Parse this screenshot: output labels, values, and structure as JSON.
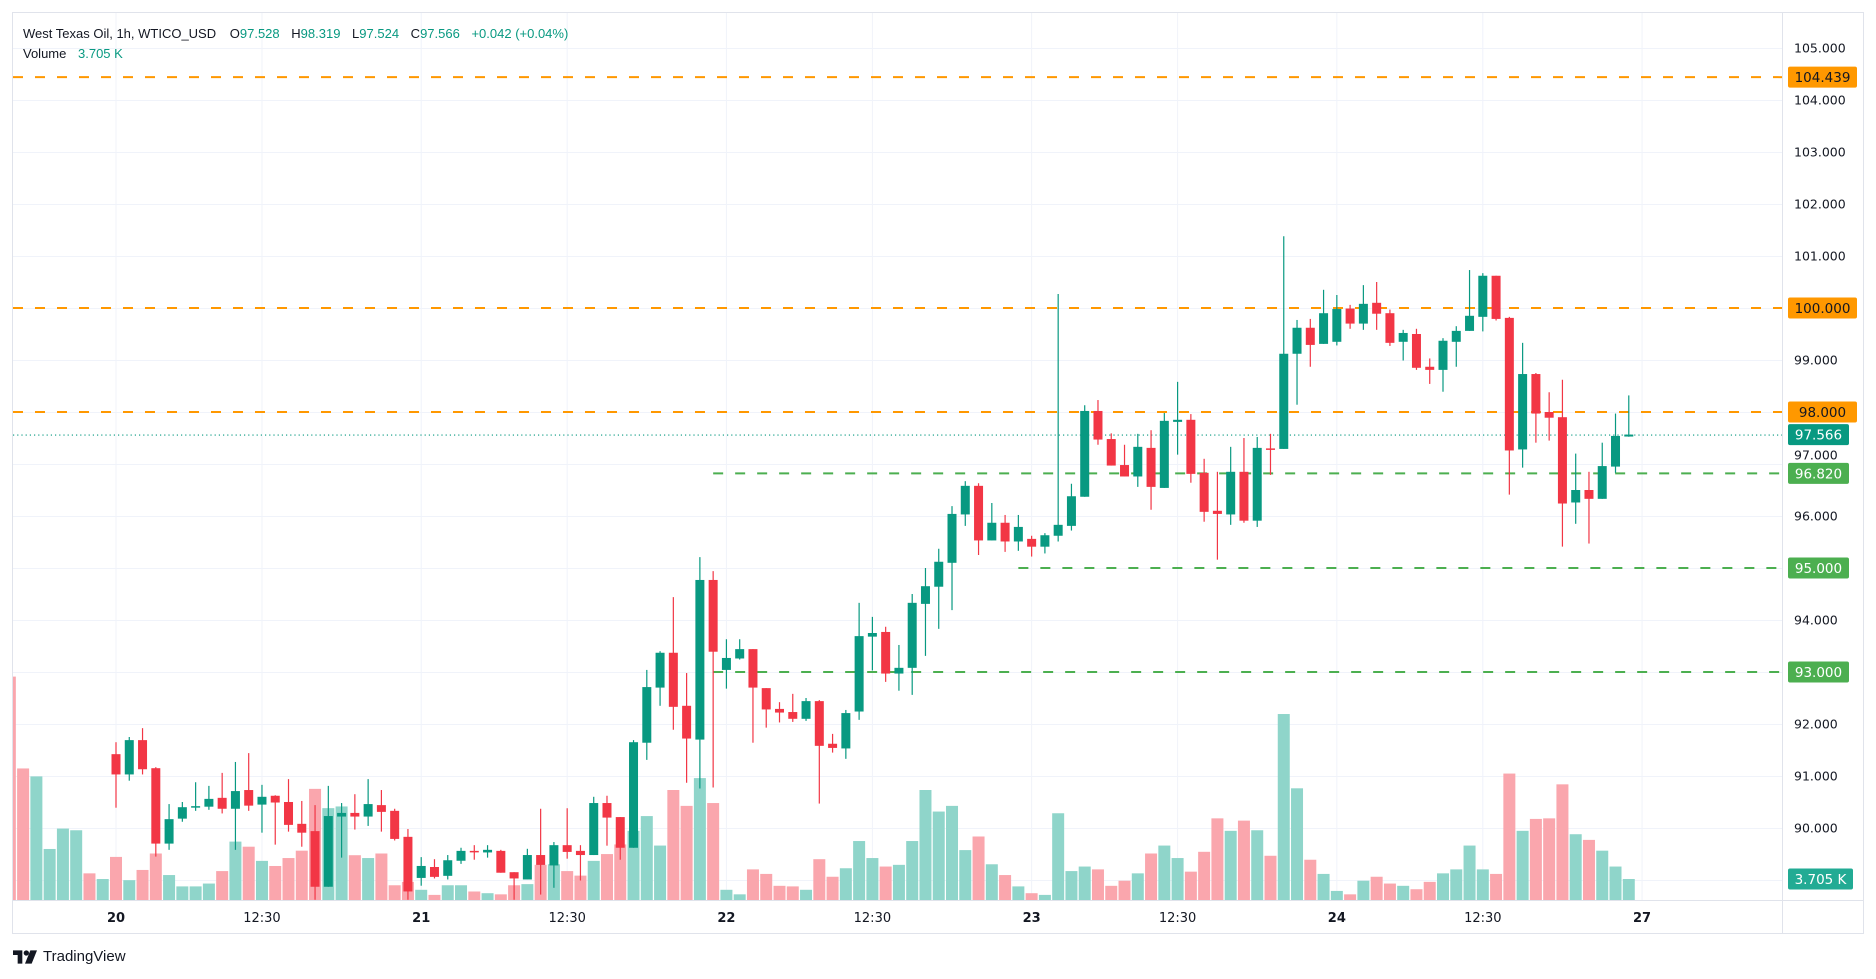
{
  "legend": {
    "symbol": "West Texas Oil, 1h, WTICO_USD",
    "open_label": "O",
    "open": "97.528",
    "high_label": "H",
    "high": "98.319",
    "low_label": "L",
    "low": "97.524",
    "close_label": "C",
    "close": "97.566",
    "change": "+0.042 (+0.04%)",
    "volume_label": "Volume",
    "volume_value": "3.705 K"
  },
  "branding": {
    "name": "TradingView"
  },
  "colors": {
    "up": "#089981",
    "down": "#f23645",
    "vol_up": "#8fd5ca",
    "vol_down": "#faa6ad",
    "orange": "#ff9800",
    "green_level": "#4caf50",
    "grid": "#f0f3fa"
  },
  "chart_data": {
    "type": "candlestick",
    "title": "West Texas Oil, 1h, WTICO_USD",
    "ylim": [
      88.4,
      105.7
    ],
    "y_ticks": [
      "90.000",
      "91.000",
      "92.000",
      "93.000",
      "94.000",
      "95.000",
      "96.000",
      "97.000",
      "98.000",
      "99.000",
      "100.000",
      "101.000",
      "102.000",
      "103.000",
      "104.000",
      "105.000"
    ],
    "x_ticks": [
      {
        "label": "20",
        "bold": true,
        "bar": 0
      },
      {
        "label": "12:30",
        "bold": false,
        "bar": 11
      },
      {
        "label": "21",
        "bold": true,
        "bar": 23
      },
      {
        "label": "12:30",
        "bold": false,
        "bar": 34
      },
      {
        "label": "22",
        "bold": true,
        "bar": 46
      },
      {
        "label": "12:30",
        "bold": false,
        "bar": 57
      },
      {
        "label": "23",
        "bold": true,
        "bar": 69
      },
      {
        "label": "12:30",
        "bold": false,
        "bar": 80
      },
      {
        "label": "24",
        "bold": true,
        "bar": 92
      },
      {
        "label": "12:30",
        "bold": false,
        "bar": 103
      },
      {
        "label": "27",
        "bold": true,
        "bar": 115
      }
    ],
    "bar_fields": [
      "open",
      "high",
      "low",
      "close",
      "volume_k"
    ],
    "first_bar_index": -8,
    "bars": [
      [
        null,
        null,
        null,
        null,
        39.4
      ],
      [
        null,
        null,
        null,
        null,
        23.2
      ],
      [
        null,
        null,
        null,
        null,
        21.8
      ],
      [
        null,
        null,
        null,
        null,
        9.0
      ],
      [
        null,
        null,
        null,
        null,
        12.6
      ],
      [
        null,
        null,
        null,
        null,
        12.3
      ],
      [
        null,
        null,
        null,
        null,
        4.7
      ],
      [
        null,
        null,
        null,
        null,
        3.7
      ],
      [
        91.42,
        91.65,
        90.39,
        91.03,
        7.6
      ],
      [
        91.03,
        91.75,
        90.91,
        91.69,
        3.5
      ],
      [
        91.69,
        91.92,
        91.03,
        91.13,
        5.3
      ],
      [
        91.15,
        91.17,
        89.45,
        89.7,
        8.2
      ],
      [
        89.7,
        90.46,
        89.58,
        90.17,
        4.4
      ],
      [
        90.18,
        90.5,
        90.12,
        90.4,
        2.4
      ],
      [
        90.42,
        90.88,
        90.33,
        90.42,
        2.4
      ],
      [
        90.41,
        90.81,
        90.35,
        90.56,
        2.9
      ],
      [
        90.58,
        91.06,
        90.28,
        90.37,
        5.1
      ],
      [
        90.37,
        91.27,
        89.58,
        90.71,
        10.3
      ],
      [
        90.73,
        91.44,
        90.33,
        90.43,
        9.4
      ],
      [
        90.45,
        90.83,
        89.91,
        90.6,
        6.9
      ],
      [
        90.62,
        90.63,
        89.68,
        90.49,
        6.0
      ],
      [
        90.5,
        90.94,
        89.93,
        90.06,
        7.4
      ],
      [
        90.08,
        90.52,
        89.64,
        89.91,
        8.7
      ],
      [
        89.94,
        90.44,
        88.62,
        88.87,
        19.6
      ],
      [
        88.87,
        90.81,
        88.87,
        90.23,
        16.2
      ],
      [
        90.22,
        90.48,
        89.43,
        90.29,
        16.5
      ],
      [
        90.29,
        90.65,
        89.97,
        90.22,
        7.9
      ],
      [
        90.22,
        90.94,
        90.04,
        90.46,
        7.4
      ],
      [
        90.44,
        90.73,
        89.93,
        90.31,
        8.2
      ],
      [
        90.33,
        90.37,
        89.76,
        89.79,
        2.6
      ],
      [
        89.83,
        89.98,
        88.62,
        88.78,
        3.2
      ],
      [
        89.04,
        89.44,
        88.89,
        89.27,
        1.8
      ],
      [
        89.25,
        89.4,
        89.03,
        89.06,
        0.9
      ],
      [
        89.08,
        89.48,
        89.01,
        89.38,
        2.6
      ],
      [
        89.37,
        89.62,
        89.31,
        89.56,
        2.6
      ],
      [
        89.56,
        89.67,
        89.39,
        89.54,
        1.5
      ],
      [
        89.53,
        89.67,
        89.43,
        89.58,
        1.2
      ],
      [
        89.56,
        89.58,
        89.14,
        89.14,
        1.0
      ],
      [
        89.15,
        89.15,
        88.62,
        89.03,
        2.6
      ],
      [
        89.01,
        89.6,
        89.01,
        89.48,
        2.8
      ],
      [
        89.48,
        90.37,
        88.72,
        89.29,
        6.2
      ],
      [
        89.28,
        89.73,
        88.85,
        89.67,
        6.3
      ],
      [
        89.67,
        90.38,
        89.41,
        89.54,
        5.1
      ],
      [
        89.56,
        89.67,
        88.99,
        89.48,
        4.3
      ],
      [
        89.48,
        90.6,
        89.48,
        90.48,
        6.9
      ],
      [
        90.48,
        90.62,
        89.66,
        90.2,
        8.1
      ],
      [
        90.21,
        90.21,
        89.39,
        89.62,
        9.8
      ],
      [
        89.62,
        91.69,
        89.62,
        91.65,
        12.2
      ],
      [
        91.64,
        93.04,
        91.31,
        92.71,
        14.8
      ],
      [
        92.7,
        93.4,
        92.35,
        93.37,
        9.6
      ],
      [
        93.37,
        94.44,
        91.89,
        92.33,
        19.4
      ],
      [
        92.35,
        92.98,
        90.87,
        91.72,
        16.6
      ],
      [
        91.7,
        95.21,
        90.76,
        94.77,
        21.5
      ],
      [
        94.77,
        94.94,
        90.78,
        93.39,
        17.1
      ],
      [
        93.04,
        93.63,
        92.68,
        93.27,
        1.8
      ],
      [
        93.26,
        93.63,
        93.24,
        93.44,
        1.0
      ],
      [
        93.44,
        93.44,
        91.64,
        92.7,
        5.4
      ],
      [
        92.69,
        92.69,
        91.93,
        92.28,
        4.6
      ],
      [
        92.29,
        92.42,
        92.03,
        92.22,
        2.5
      ],
      [
        92.23,
        92.58,
        92.04,
        92.1,
        2.4
      ],
      [
        92.1,
        92.5,
        92.06,
        92.44,
        1.8
      ],
      [
        92.44,
        92.46,
        90.47,
        91.58,
        7.2
      ],
      [
        91.62,
        91.81,
        91.45,
        91.54,
        4.1
      ],
      [
        91.53,
        92.27,
        91.33,
        92.21,
        5.6
      ],
      [
        92.24,
        94.33,
        92.08,
        93.69,
        10.4
      ],
      [
        93.68,
        94.06,
        93.03,
        93.75,
        7.4
      ],
      [
        93.77,
        93.87,
        92.81,
        92.97,
        5.9
      ],
      [
        92.97,
        93.52,
        92.64,
        93.08,
        6.2
      ],
      [
        93.08,
        94.5,
        92.56,
        94.33,
        10.4
      ],
      [
        94.31,
        95.0,
        93.31,
        94.65,
        19.4
      ],
      [
        94.64,
        95.37,
        93.83,
        95.12,
        15.6
      ],
      [
        95.1,
        96.19,
        94.19,
        96.04,
        16.6
      ],
      [
        96.03,
        96.67,
        95.81,
        96.58,
        8.8
      ],
      [
        96.58,
        96.63,
        95.25,
        95.53,
        11.2
      ],
      [
        95.53,
        96.25,
        95.53,
        95.87,
        6.3
      ],
      [
        95.87,
        96.02,
        95.31,
        95.51,
        4.4
      ],
      [
        95.51,
        96.02,
        95.33,
        95.79,
        2.4
      ],
      [
        95.56,
        95.62,
        95.22,
        95.41,
        1.2
      ],
      [
        95.41,
        95.67,
        95.28,
        95.63,
        0.9
      ],
      [
        95.62,
        100.27,
        95.51,
        95.83,
        15.3
      ],
      [
        95.81,
        96.62,
        95.72,
        96.38,
        5.1
      ],
      [
        96.37,
        98.13,
        96.37,
        98.02,
        5.9
      ],
      [
        98.02,
        98.23,
        97.37,
        97.47,
        5.4
      ],
      [
        97.48,
        97.59,
        96.97,
        96.97,
        2.5
      ],
      [
        96.98,
        97.37,
        96.76,
        96.76,
        3.4
      ],
      [
        96.76,
        97.58,
        96.56,
        97.33,
        4.7
      ],
      [
        97.31,
        97.65,
        96.12,
        96.56,
        8.2
      ],
      [
        96.54,
        97.98,
        96.54,
        97.83,
        9.6
      ],
      [
        97.81,
        98.58,
        97.18,
        97.85,
        7.4
      ],
      [
        97.85,
        97.96,
        96.64,
        96.81,
        5.0
      ],
      [
        96.83,
        97.1,
        95.89,
        96.08,
        8.5
      ],
      [
        96.1,
        96.85,
        95.16,
        96.04,
        14.4
      ],
      [
        96.03,
        97.33,
        95.83,
        96.85,
        12.2
      ],
      [
        96.85,
        97.5,
        95.87,
        95.91,
        14.0
      ],
      [
        95.91,
        97.52,
        95.79,
        97.31,
        12.3
      ],
      [
        97.3,
        97.58,
        96.79,
        97.29,
        7.8
      ],
      [
        97.29,
        101.38,
        97.29,
        99.12,
        32.8
      ],
      [
        99.12,
        99.77,
        98.14,
        99.62,
        19.7
      ],
      [
        99.62,
        99.79,
        98.87,
        99.29,
        7.1
      ],
      [
        99.31,
        100.35,
        99.31,
        99.9,
        4.6
      ],
      [
        99.35,
        100.25,
        99.28,
        99.98,
        1.6
      ],
      [
        99.99,
        100.06,
        99.6,
        99.7,
        1.0
      ],
      [
        99.7,
        100.44,
        99.58,
        100.08,
        3.4
      ],
      [
        100.1,
        100.5,
        99.58,
        99.89,
        4.1
      ],
      [
        99.9,
        99.97,
        99.27,
        99.33,
        2.9
      ],
      [
        99.35,
        99.58,
        98.99,
        99.52,
        2.5
      ],
      [
        99.5,
        99.6,
        98.81,
        98.85,
        1.9
      ],
      [
        98.87,
        99.03,
        98.54,
        98.81,
        3.2
      ],
      [
        98.81,
        99.42,
        98.39,
        99.37,
        4.7
      ],
      [
        99.35,
        99.65,
        98.87,
        99.56,
        5.4
      ],
      [
        99.56,
        100.73,
        99.56,
        99.85,
        9.6
      ],
      [
        99.83,
        100.67,
        99.55,
        100.62,
        5.4
      ],
      [
        100.62,
        100.62,
        99.76,
        99.79,
        4.6
      ],
      [
        99.81,
        99.83,
        96.41,
        97.26,
        22.3
      ],
      [
        97.28,
        99.33,
        96.93,
        98.73,
        12.2
      ],
      [
        98.73,
        98.75,
        97.41,
        97.97,
        14.3
      ],
      [
        98.0,
        98.38,
        97.45,
        97.89,
        14.4
      ],
      [
        97.9,
        98.62,
        95.41,
        96.24,
        20.4
      ],
      [
        96.26,
        97.2,
        95.85,
        96.5,
        11.6
      ],
      [
        96.5,
        96.85,
        95.47,
        96.33,
        10.6
      ],
      [
        96.33,
        97.41,
        96.33,
        96.96,
        8.7
      ],
      [
        96.95,
        97.97,
        96.83,
        97.54,
        5.9
      ],
      [
        97.528,
        98.319,
        97.524,
        97.566,
        3.705
      ]
    ],
    "levels": [
      {
        "price": 104.439,
        "label": "104.439",
        "kind": "orange"
      },
      {
        "price": 100.0,
        "label": "100.000",
        "kind": "orange"
      },
      {
        "price": 98.0,
        "label": "98.000",
        "kind": "orange"
      },
      {
        "price": 96.82,
        "label": "96.820",
        "kind": "green"
      },
      {
        "price": 95.0,
        "label": "95.000",
        "kind": "green"
      },
      {
        "price": 93.0,
        "label": "93.000",
        "kind": "green"
      }
    ],
    "last_price": {
      "price": 97.566,
      "label": "97.566"
    },
    "last_volume": {
      "value_k": 3.705,
      "label": "3.705 K"
    }
  }
}
